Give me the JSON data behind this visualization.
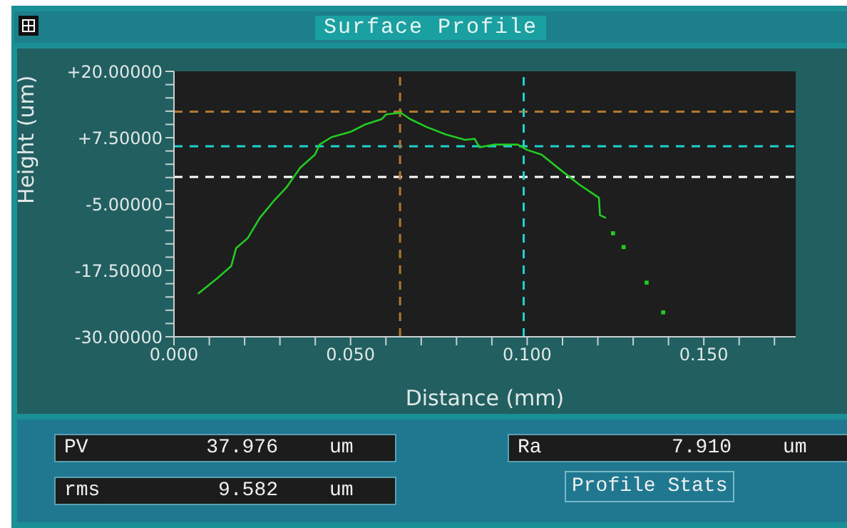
{
  "chart_data": {
    "type": "line",
    "title": "Surface Profile",
    "xlabel": "Distance (mm)",
    "ylabel": "Height (um)",
    "xlim": [
      0,
      0.176
    ],
    "xticks": [
      {
        "value": 0,
        "label": "0.000"
      },
      {
        "value": 0.01,
        "label": null
      },
      {
        "value": 0.02,
        "label": null
      },
      {
        "value": 0.03,
        "label": null
      },
      {
        "value": 0.04,
        "label": null
      },
      {
        "value": 0.05,
        "label": "0.050"
      },
      {
        "value": 0.06,
        "label": null
      },
      {
        "value": 0.07,
        "label": null
      },
      {
        "value": 0.08,
        "label": null
      },
      {
        "value": 0.09,
        "label": null
      },
      {
        "value": 0.1,
        "label": "0.100"
      },
      {
        "value": 0.11,
        "label": null
      },
      {
        "value": 0.12,
        "label": null
      },
      {
        "value": 0.13,
        "label": null
      },
      {
        "value": 0.14,
        "label": null
      },
      {
        "value": 0.15,
        "label": "0.150"
      },
      {
        "value": 0.16,
        "label": null
      },
      {
        "value": 0.17,
        "label": null
      }
    ],
    "ylim": [
      -30,
      20
    ],
    "yticks": [
      {
        "value": -30,
        "label": "-30.00000"
      },
      {
        "value": -27.5,
        "label": null
      },
      {
        "value": -25,
        "label": null
      },
      {
        "value": -22.5,
        "label": null
      },
      {
        "value": -20,
        "label": null
      },
      {
        "value": -17.5,
        "label": "-17.50000"
      },
      {
        "value": -15,
        "label": null
      },
      {
        "value": -12.5,
        "label": null
      },
      {
        "value": -10,
        "label": null
      },
      {
        "value": -7.5,
        "label": null
      },
      {
        "value": -5,
        "label": "-5.00000"
      },
      {
        "value": -2.5,
        "label": null
      },
      {
        "value": 0,
        "label": null
      },
      {
        "value": 2.5,
        "label": null
      },
      {
        "value": 5,
        "label": null
      },
      {
        "value": 7.5,
        "label": "+7.50000"
      },
      {
        "value": 10,
        "label": null
      },
      {
        "value": 12.5,
        "label": null
      },
      {
        "value": 15,
        "label": null
      },
      {
        "value": 17.5,
        "label": null
      },
      {
        "value": 20,
        "label": "+20.00000"
      }
    ],
    "grid": false,
    "legend": false,
    "series": [
      {
        "color": "#22cc22",
        "x": [
          0.0068,
          0.0122,
          0.0162,
          0.0176,
          0.0209,
          0.0243,
          0.0284,
          0.0318,
          0.0358,
          0.0399,
          0.0412,
          0.0446,
          0.05,
          0.0541,
          0.0588,
          0.0601,
          0.0642,
          0.0669,
          0.0716,
          0.077,
          0.0824,
          0.0851,
          0.0865,
          0.0905,
          0.0973,
          0.1,
          0.1041,
          0.1095,
          0.1149,
          0.1203,
          0.1206,
          0.1223
        ],
        "values": [
          -21.9,
          -19.0,
          -16.7,
          -13.3,
          -11.4,
          -7.6,
          -4.3,
          -1.9,
          1.9,
          4.3,
          6.2,
          7.6,
          8.6,
          10.0,
          11.0,
          11.9,
          12.2,
          11.0,
          9.5,
          8.1,
          7.1,
          7.3,
          5.7,
          6.2,
          6.2,
          5.2,
          4.3,
          1.4,
          -1.4,
          -3.8,
          -7.1,
          -7.6
        ]
      },
      {
        "type": "scatter",
        "color": "#22cc22",
        "marker": "square",
        "x": [
          0.1243,
          0.1273,
          0.1338,
          0.1385
        ],
        "values": [
          -10.5,
          -13.1,
          -19.8,
          -25.4
        ]
      }
    ],
    "ref_lines": [
      {
        "axis": "y",
        "value": 12.4,
        "color": "#b07830",
        "line_style": "dashed"
      },
      {
        "axis": "y",
        "value": 5.9,
        "color": "#20d0d0",
        "line_style": "dashed"
      },
      {
        "axis": "y",
        "value": 0.1,
        "color": "#ffffff",
        "line_style": "dashed"
      },
      {
        "axis": "x",
        "value": 0.064,
        "color": "#b07830",
        "line_style": "dashed"
      },
      {
        "axis": "x",
        "value": 0.099,
        "color": "#20d0d0",
        "line_style": "dashed"
      }
    ],
    "annotations": [
      "PV 37.976 um",
      "rms 9.582 um",
      "Ra 7.910 um",
      "Profile Stats"
    ]
  }
}
